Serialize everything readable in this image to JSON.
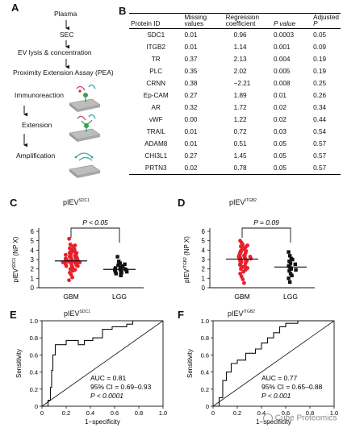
{
  "panel_letters": [
    "A",
    "B",
    "C",
    "D",
    "E",
    "F"
  ],
  "flow": {
    "steps": [
      "Plasma",
      "SEC",
      "EV lysis & concentration",
      "Proximity Extension Assay (PEA)"
    ],
    "substeps": [
      "Immunoreaction",
      "Extension",
      "Amplification"
    ]
  },
  "table": {
    "headers": {
      "protein": "Protein ID",
      "missing_1": "Missing",
      "missing_2": "values",
      "reg_1": "Regression",
      "reg_2": "coefficient",
      "p": "P value",
      "adj_1": "Adjusted",
      "adj_2": "P"
    },
    "rows": [
      {
        "id": "SDC1",
        "missing": "0.01",
        "coef": "0.96",
        "p": "0.0003",
        "adj": "0.05"
      },
      {
        "id": "ITGB2",
        "missing": "0.01",
        "coef": "1.14",
        "p": "0.001",
        "adj": "0.09"
      },
      {
        "id": "TR",
        "missing": "0.37",
        "coef": "2.13",
        "p": "0.004",
        "adj": "0.19"
      },
      {
        "id": "PLC",
        "missing": "0.35",
        "coef": "2.02",
        "p": "0.005",
        "adj": "0.19"
      },
      {
        "id": "CRNN",
        "missing": "0.38",
        "coef": "−2.21",
        "p": "0.008",
        "adj": "0.25"
      },
      {
        "id": "Ep-CAM",
        "missing": "0.27",
        "coef": "1.89",
        "p": "0.01",
        "adj": "0.26"
      },
      {
        "id": "AR",
        "missing": "0.32",
        "coef": "1.72",
        "p": "0.02",
        "adj": "0.34"
      },
      {
        "id": "vWF",
        "missing": "0.00",
        "coef": "1.22",
        "p": "0.02",
        "adj": "0.44"
      },
      {
        "id": "TRAIL",
        "missing": "0.01",
        "coef": "0.72",
        "p": "0.03",
        "adj": "0.54"
      },
      {
        "id": "ADAM8",
        "missing": "0.01",
        "coef": "0.51",
        "p": "0.05",
        "adj": "0.57"
      },
      {
        "id": "CHI3L1",
        "missing": "0.27",
        "coef": "1.45",
        "p": "0.05",
        "adj": "0.57"
      },
      {
        "id": "PRTN3",
        "missing": "0.02",
        "coef": "0.78",
        "p": "0.05",
        "adj": "0.57"
      }
    ]
  },
  "chart_data": [
    {
      "panel": "C",
      "type": "scatter",
      "title_main": "pIEV",
      "title_sup": "SDC1",
      "ylabel_main": "pIEV",
      "ylabel_sup": "SDC1",
      "ylabel_tail": " (NP X)",
      "categories": [
        "GBM",
        "LGG"
      ],
      "yticks": [
        "0",
        "1",
        "2",
        "3",
        "4",
        "5",
        "6"
      ],
      "ylim": [
        0,
        6
      ],
      "annotation": "P < 0.05",
      "series": [
        {
          "name": "GBM",
          "marker": "circle",
          "color": "#e8202a",
          "mean": 2.85,
          "values": [
            5.2,
            4.6,
            4.5,
            4.4,
            4.2,
            4.1,
            4.0,
            3.9,
            3.8,
            3.8,
            3.7,
            3.7,
            3.6,
            3.5,
            3.5,
            3.4,
            3.4,
            3.3,
            3.3,
            3.2,
            3.2,
            3.1,
            3.1,
            3.0,
            3.0,
            3.0,
            2.9,
            2.9,
            2.8,
            2.8,
            2.8,
            2.7,
            2.7,
            2.6,
            2.6,
            2.5,
            2.5,
            2.4,
            2.4,
            2.3,
            2.3,
            2.2,
            2.1,
            2.0,
            1.9,
            1.8,
            1.6,
            1.4,
            1.1,
            0.8
          ]
        },
        {
          "name": "LGG",
          "marker": "square",
          "color": "#111111",
          "mean": 1.95,
          "values": [
            3.3,
            2.8,
            2.6,
            2.5,
            2.4,
            2.3,
            2.2,
            2.2,
            2.1,
            2.0,
            2.0,
            1.9,
            1.9,
            1.8,
            1.8,
            1.7,
            1.7,
            1.6,
            1.6,
            1.5,
            1.4,
            1.3
          ]
        }
      ]
    },
    {
      "panel": "D",
      "type": "scatter",
      "title_main": "pIEV",
      "title_sup": "ITGB2",
      "ylabel_main": "pIEV",
      "ylabel_sup": "ITGB2",
      "ylabel_tail": " (NP X)",
      "categories": [
        "GBM",
        "LGG"
      ],
      "yticks": [
        "0",
        "1",
        "2",
        "3",
        "4",
        "5",
        "6"
      ],
      "ylim": [
        0,
        6
      ],
      "annotation": "P = 0.09",
      "series": [
        {
          "name": "GBM",
          "marker": "circle",
          "color": "#e8202a",
          "mean": 3.05,
          "values": [
            5.0,
            4.8,
            4.6,
            4.5,
            4.4,
            4.3,
            4.2,
            4.1,
            4.0,
            3.9,
            3.9,
            3.8,
            3.7,
            3.7,
            3.6,
            3.5,
            3.5,
            3.4,
            3.4,
            3.3,
            3.3,
            3.2,
            3.2,
            3.1,
            3.1,
            3.0,
            3.0,
            2.9,
            2.9,
            2.8,
            2.8,
            2.7,
            2.6,
            2.6,
            2.5,
            2.4,
            2.3,
            2.2,
            2.1,
            2.0,
            1.9,
            1.7,
            1.5,
            1.2,
            0.9,
            0.5
          ]
        },
        {
          "name": "LGG",
          "marker": "square",
          "color": "#111111",
          "mean": 2.2,
          "values": [
            3.8,
            3.4,
            3.1,
            3.0,
            2.8,
            2.6,
            2.5,
            2.3,
            2.2,
            2.0,
            1.9,
            1.8,
            1.5,
            1.3,
            1.0,
            0.6
          ]
        }
      ]
    },
    {
      "panel": "E",
      "type": "line",
      "title_main": "pIEV",
      "title_sup": "SDC1",
      "xlabel": "1−specificity",
      "ylabel": "Sensitivity",
      "xticks": [
        "0",
        "0.2",
        "0.4",
        "0.6",
        "0.8",
        "1.0"
      ],
      "yticks": [
        "0",
        "0.2",
        "0.4",
        "0.6",
        "0.8",
        "1.0"
      ],
      "xlim": [
        0,
        1
      ],
      "ylim": [
        0,
        1
      ],
      "auc_text": "AUC = 0.81",
      "ci_text": "95% CI = 0.69–0.93",
      "p_text": "P < 0.0001",
      "points": [
        [
          0,
          0
        ],
        [
          0.05,
          0
        ],
        [
          0.05,
          0.07
        ],
        [
          0.07,
          0.07
        ],
        [
          0.07,
          0.22
        ],
        [
          0.08,
          0.22
        ],
        [
          0.08,
          0.42
        ],
        [
          0.09,
          0.42
        ],
        [
          0.09,
          0.6
        ],
        [
          0.11,
          0.6
        ],
        [
          0.11,
          0.72
        ],
        [
          0.2,
          0.72
        ],
        [
          0.2,
          0.77
        ],
        [
          0.3,
          0.77
        ],
        [
          0.3,
          0.72
        ],
        [
          0.35,
          0.72
        ],
        [
          0.35,
          0.77
        ],
        [
          0.42,
          0.77
        ],
        [
          0.42,
          0.8
        ],
        [
          0.5,
          0.8
        ],
        [
          0.5,
          0.9
        ],
        [
          0.58,
          0.9
        ],
        [
          0.58,
          0.93
        ],
        [
          0.7,
          0.93
        ],
        [
          0.7,
          0.96
        ],
        [
          0.75,
          0.96
        ],
        [
          0.75,
          1.0
        ],
        [
          1.0,
          1.0
        ]
      ]
    },
    {
      "panel": "F",
      "type": "line",
      "title_main": "pIEV",
      "title_sup": "ITGB2",
      "xlabel": "1−specificity",
      "ylabel": "Sensitivity",
      "xticks": [
        "0",
        "0.2",
        "0.4",
        "0.6",
        "0.8",
        "1.0"
      ],
      "yticks": [
        "0",
        "0.2",
        "0.4",
        "0.6",
        "0.8",
        "1.0"
      ],
      "xlim": [
        0,
        1
      ],
      "ylim": [
        0,
        1
      ],
      "auc_text": "AUC = 0.77",
      "ci_text": "95% CI = 0.65–0.88",
      "p_text": "P < 0.001",
      "points": [
        [
          0,
          0
        ],
        [
          0.05,
          0
        ],
        [
          0.05,
          0.1
        ],
        [
          0.08,
          0.1
        ],
        [
          0.08,
          0.3
        ],
        [
          0.11,
          0.3
        ],
        [
          0.11,
          0.4
        ],
        [
          0.15,
          0.4
        ],
        [
          0.15,
          0.5
        ],
        [
          0.2,
          0.5
        ],
        [
          0.2,
          0.54
        ],
        [
          0.27,
          0.54
        ],
        [
          0.27,
          0.62
        ],
        [
          0.35,
          0.62
        ],
        [
          0.35,
          0.67
        ],
        [
          0.4,
          0.67
        ],
        [
          0.4,
          0.74
        ],
        [
          0.45,
          0.74
        ],
        [
          0.45,
          0.8
        ],
        [
          0.5,
          0.8
        ],
        [
          0.5,
          0.86
        ],
        [
          0.55,
          0.86
        ],
        [
          0.55,
          0.93
        ],
        [
          0.6,
          0.93
        ],
        [
          0.6,
          0.97
        ],
        [
          0.7,
          0.97
        ],
        [
          0.7,
          1.0
        ],
        [
          1.0,
          1.0
        ]
      ]
    }
  ],
  "watermark": "Cube Proteomics",
  "colors": {
    "red": "#e8202a",
    "black": "#111111",
    "green": "#3aa04a",
    "teal": "#3aa7b0",
    "magenta": "#c04a8c"
  }
}
